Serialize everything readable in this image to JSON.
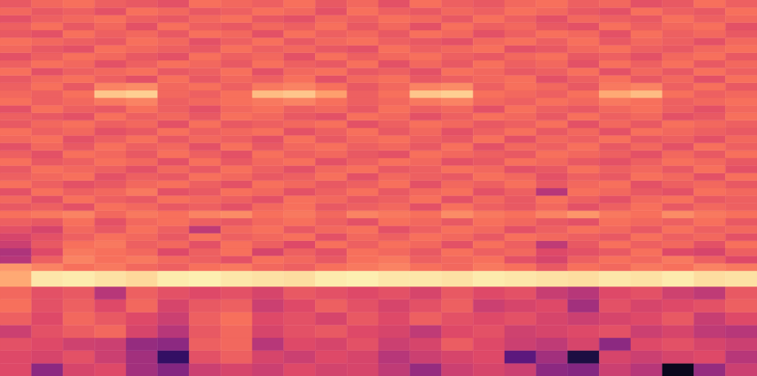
{
  "chart_data": {
    "type": "heatmap",
    "tick_labels": false,
    "xlim": [
      0,
      24
    ],
    "ylim": [
      0,
      100
    ],
    "zlim": [
      0,
      100
    ],
    "y_edges": [
      0,
      3.4,
      6.8,
      10.2,
      13.6,
      17,
      20.4,
      23.8,
      28,
      30,
      32,
      34,
      36,
      38,
      40,
      42,
      44,
      46,
      48,
      50,
      52,
      54,
      56,
      58,
      60,
      62,
      64,
      66,
      68,
      70,
      72,
      74,
      76,
      78,
      80,
      82,
      84,
      86,
      88,
      90,
      92,
      94,
      96,
      98,
      100
    ],
    "cells": [
      [
        60,
        40,
        58,
        60,
        45,
        38,
        55,
        58,
        55,
        60,
        57,
        58,
        52,
        42,
        55,
        58,
        55,
        40,
        38,
        55,
        50,
        5,
        42,
        55
      ],
      [
        60,
        58,
        62,
        55,
        45,
        18,
        62,
        66,
        58,
        55,
        60,
        58,
        50,
        55,
        58,
        60,
        28,
        45,
        12,
        58,
        55,
        58,
        60,
        50
      ],
      [
        62,
        60,
        56,
        55,
        42,
        40,
        66,
        68,
        50,
        60,
        58,
        62,
        55,
        58,
        65,
        60,
        55,
        52,
        58,
        40,
        60,
        62,
        58,
        55
      ],
      [
        55,
        62,
        65,
        68,
        58,
        50,
        64,
        68,
        58,
        62,
        64,
        60,
        58,
        52,
        60,
        62,
        56,
        58,
        60,
        62,
        55,
        58,
        52,
        50
      ],
      [
        66,
        60,
        68,
        64,
        60,
        55,
        66,
        70,
        60,
        62,
        58,
        64,
        60,
        66,
        62,
        60,
        62,
        58,
        55,
        58,
        60,
        64,
        54,
        60
      ],
      [
        70,
        62,
        66,
        60,
        68,
        58,
        64,
        66,
        55,
        60,
        66,
        62,
        58,
        62,
        66,
        55,
        58,
        60,
        45,
        62,
        58,
        60,
        62,
        66
      ],
      [
        68,
        62,
        64,
        50,
        66,
        62,
        60,
        62,
        58,
        64,
        62,
        60,
        62,
        58,
        64,
        60,
        62,
        54,
        50,
        60,
        62,
        56,
        52,
        64
      ],
      [
        82,
        95,
        96,
        94,
        92,
        96,
        97,
        95,
        94,
        93,
        96,
        97,
        95,
        95,
        94,
        96,
        95,
        94,
        93,
        95,
        94,
        96,
        93,
        94
      ],
      [
        78,
        74,
        70,
        72,
        68,
        66,
        70,
        72,
        68,
        66,
        70,
        72,
        74,
        70,
        68,
        72,
        70,
        64,
        70,
        68,
        72,
        70,
        74,
        72
      ],
      [
        50,
        66,
        74,
        70,
        72,
        68,
        66,
        62,
        70,
        68,
        64,
        70,
        72,
        66,
        68,
        70,
        62,
        58,
        66,
        70,
        68,
        72,
        66,
        60
      ],
      [
        48,
        60,
        72,
        70,
        68,
        60,
        66,
        70,
        58,
        66,
        62,
        70,
        68,
        64,
        70,
        66,
        68,
        60,
        62,
        64,
        70,
        60,
        58,
        66
      ],
      [
        55,
        64,
        70,
        72,
        66,
        68,
        62,
        70,
        66,
        60,
        70,
        66,
        70,
        68,
        62,
        70,
        66,
        52,
        64,
        70,
        66,
        68,
        62,
        70
      ],
      [
        58,
        62,
        66,
        70,
        68,
        64,
        70,
        66,
        68,
        70,
        62,
        68,
        66,
        70,
        68,
        64,
        70,
        68,
        66,
        64,
        70,
        66,
        68,
        62
      ],
      [
        62,
        58,
        68,
        64,
        70,
        66,
        52,
        68,
        70,
        64,
        68,
        70,
        62,
        66,
        70,
        68,
        62,
        66,
        70,
        68,
        64,
        70,
        66,
        68
      ],
      [
        66,
        64,
        70,
        62,
        68,
        70,
        66,
        64,
        68,
        70,
        66,
        62,
        70,
        68,
        64,
        70,
        68,
        64,
        62,
        70,
        68,
        66,
        70,
        64
      ],
      [
        70,
        72,
        74,
        68,
        72,
        70,
        74,
        76,
        70,
        72,
        68,
        74,
        72,
        70,
        76,
        72,
        70,
        74,
        78,
        72,
        70,
        76,
        72,
        70
      ],
      [
        64,
        66,
        62,
        70,
        68,
        64,
        66,
        62,
        68,
        70,
        64,
        66,
        68,
        62,
        70,
        66,
        64,
        68,
        62,
        66,
        70,
        64,
        68,
        66
      ],
      [
        68,
        62,
        70,
        66,
        64,
        70,
        68,
        66,
        62,
        70,
        68,
        64,
        66,
        70,
        62,
        68,
        64,
        70,
        66,
        62,
        68,
        70,
        64,
        66
      ],
      [
        62,
        70,
        66,
        68,
        72,
        62,
        64,
        70,
        68,
        62,
        66,
        70,
        64,
        68,
        70,
        62,
        66,
        50,
        70,
        68,
        64,
        62,
        70,
        68
      ],
      [
        70,
        66,
        62,
        64,
        68,
        70,
        66,
        62,
        70,
        68,
        64,
        66,
        70,
        62,
        68,
        66,
        70,
        64,
        68,
        70,
        62,
        66,
        68,
        64
      ],
      [
        66,
        68,
        70,
        62,
        66,
        64,
        70,
        68,
        64,
        66,
        70,
        62,
        68,
        66,
        64,
        70,
        68,
        62,
        66,
        64,
        70,
        68,
        62,
        70
      ],
      [
        64,
        70,
        68,
        66,
        62,
        68,
        64,
        70,
        66,
        62,
        68,
        70,
        64,
        66,
        70,
        68,
        62,
        64,
        70,
        66,
        68,
        64,
        70,
        62
      ],
      [
        70,
        64,
        66,
        70,
        68,
        62,
        70,
        64,
        68,
        70,
        62,
        66,
        70,
        68,
        62,
        64,
        70,
        68,
        64,
        62,
        66,
        70,
        68,
        64
      ],
      [
        66,
        62,
        70,
        68,
        64,
        70,
        66,
        62,
        70,
        66,
        68,
        64,
        62,
        70,
        68,
        66,
        64,
        70,
        68,
        66,
        62,
        68,
        64,
        70
      ],
      [
        62,
        68,
        64,
        70,
        66,
        68,
        62,
        70,
        64,
        68,
        70,
        66,
        68,
        64,
        70,
        62,
        68,
        66,
        70,
        64,
        68,
        62,
        70,
        66
      ],
      [
        68,
        70,
        62,
        66,
        70,
        64,
        68,
        66,
        62,
        70,
        64,
        68,
        70,
        66,
        64,
        70,
        62,
        68,
        66,
        70,
        64,
        66,
        62,
        68
      ],
      [
        70,
        66,
        68,
        62,
        64,
        70,
        66,
        68,
        70,
        62,
        66,
        70,
        64,
        68,
        62,
        66,
        70,
        64,
        68,
        62,
        70,
        68,
        66,
        64
      ],
      [
        64,
        68,
        70,
        66,
        68,
        62,
        70,
        64,
        66,
        68,
        70,
        62,
        66,
        70,
        68,
        64,
        66,
        70,
        62,
        68,
        64,
        70,
        68,
        66
      ],
      [
        66,
        64,
        62,
        70,
        66,
        68,
        64,
        70,
        68,
        64,
        62,
        70,
        68,
        62,
        66,
        70,
        68,
        64,
        70,
        66,
        68,
        62,
        64,
        70
      ],
      [
        62,
        70,
        66,
        64,
        70,
        66,
        62,
        68,
        70,
        66,
        68,
        64,
        70,
        66,
        68,
        62,
        70,
        66,
        64,
        68,
        70,
        66,
        62,
        68
      ],
      [
        70,
        66,
        68,
        72,
        74,
        66,
        68,
        70,
        72,
        74,
        70,
        66,
        68,
        72,
        74,
        68,
        66,
        70,
        68,
        72,
        70,
        66,
        68,
        70
      ],
      [
        68,
        66,
        70,
        88,
        90,
        68,
        66,
        70,
        86,
        88,
        80,
        66,
        70,
        88,
        90,
        70,
        68,
        66,
        70,
        82,
        86,
        70,
        66,
        68
      ],
      [
        66,
        70,
        64,
        74,
        76,
        68,
        70,
        66,
        72,
        74,
        70,
        64,
        68,
        74,
        76,
        66,
        70,
        68,
        64,
        72,
        74,
        66,
        70,
        64
      ],
      [
        64,
        68,
        70,
        66,
        62,
        70,
        64,
        68,
        66,
        70,
        62,
        68,
        70,
        64,
        66,
        68,
        70,
        62,
        66,
        70,
        64,
        68,
        62,
        70
      ],
      [
        70,
        62,
        66,
        68,
        70,
        64,
        66,
        70,
        62,
        68,
        70,
        64,
        66,
        62,
        70,
        68,
        64,
        66,
        70,
        62,
        68,
        64,
        70,
        66
      ],
      [
        66,
        70,
        68,
        62,
        66,
        70,
        68,
        64,
        70,
        66,
        64,
        70,
        62,
        68,
        64,
        70,
        66,
        68,
        62,
        70,
        66,
        70,
        64,
        68
      ],
      [
        62,
        66,
        70,
        68,
        64,
        62,
        70,
        66,
        68,
        62,
        70,
        66,
        68,
        70,
        66,
        64,
        68,
        70,
        64,
        66,
        62,
        68,
        70,
        64
      ],
      [
        68,
        64,
        62,
        70,
        68,
        66,
        64,
        70,
        66,
        68,
        64,
        62,
        70,
        66,
        68,
        70,
        62,
        64,
        68,
        70,
        66,
        64,
        68,
        70
      ],
      [
        70,
        68,
        66,
        64,
        70,
        68,
        62,
        66,
        70,
        64,
        68,
        70,
        66,
        64,
        62,
        68,
        70,
        66,
        70,
        64,
        68,
        66,
        62,
        68
      ],
      [
        64,
        62,
        70,
        66,
        68,
        64,
        70,
        68,
        62,
        70,
        66,
        68,
        64,
        70,
        68,
        62,
        66,
        70,
        68,
        62,
        70,
        66,
        68,
        64
      ],
      [
        66,
        70,
        64,
        68,
        62,
        70,
        66,
        64,
        68,
        66,
        70,
        64,
        68,
        62,
        70,
        66,
        68,
        64,
        62,
        70,
        66,
        68,
        70,
        62
      ],
      [
        62,
        66,
        68,
        70,
        66,
        64,
        68,
        70,
        64,
        62,
        68,
        66,
        70,
        68,
        64,
        70,
        66,
        62,
        68,
        66,
        64,
        70,
        66,
        68
      ],
      [
        68,
        64,
        66,
        62,
        70,
        68,
        64,
        66,
        70,
        68,
        62,
        70,
        66,
        64,
        68,
        66,
        70,
        68,
        64,
        62,
        70,
        66,
        64,
        70
      ],
      [
        64,
        68,
        70,
        66,
        64,
        62,
        70,
        68,
        66,
        70,
        64,
        68,
        62,
        70,
        66,
        64,
        68,
        70,
        66,
        68,
        62,
        64,
        70,
        66
      ]
    ]
  }
}
